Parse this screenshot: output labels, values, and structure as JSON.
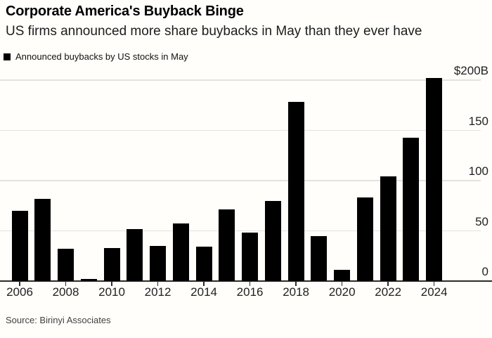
{
  "header": {
    "title": "Corporate America's Buyback Binge",
    "subtitle": "US firms announced more share buybacks in May than they ever have"
  },
  "legend": {
    "label": "Announced buybacks by US stocks in May",
    "swatch_color": "#000000"
  },
  "footer": {
    "source": "Source: Birinyi Associates"
  },
  "colors": {
    "background": "#fffefa",
    "bar": "#000000",
    "gridline": "#e2e2e2",
    "axis": "#2b2b2b",
    "text": "#111111"
  },
  "chart_data": {
    "type": "bar",
    "title": "Corporate America's Buyback Binge",
    "subtitle": "US firms announced more share buybacks in May than they ever have",
    "series_name": "Announced buybacks by US stocks in May",
    "unit": "billions of US dollars",
    "categories": [
      2006,
      2007,
      2008,
      2009,
      2010,
      2011,
      2012,
      2013,
      2014,
      2015,
      2016,
      2017,
      2018,
      2019,
      2020,
      2021,
      2022,
      2023,
      2024
    ],
    "values": [
      70,
      82,
      32,
      2,
      33,
      52,
      35,
      57,
      34,
      71,
      48,
      80,
      178,
      45,
      11,
      83,
      104,
      143,
      202
    ],
    "ylim": [
      0,
      200
    ],
    "y_ticks": [
      {
        "value": 0,
        "label": "0"
      },
      {
        "value": 50,
        "label": "50"
      },
      {
        "value": 100,
        "label": "100"
      },
      {
        "value": 150,
        "label": "150"
      },
      {
        "value": 200,
        "label": "$200B"
      }
    ],
    "x_ticks": [
      {
        "year": 2006,
        "label": "2006"
      },
      {
        "year": 2008,
        "label": "2008"
      },
      {
        "year": 2010,
        "label": "2010"
      },
      {
        "year": 2012,
        "label": "2012"
      },
      {
        "year": 2014,
        "label": "2014"
      },
      {
        "year": 2016,
        "label": "2016"
      },
      {
        "year": 2018,
        "label": "2018"
      },
      {
        "year": 2020,
        "label": "2020"
      },
      {
        "year": 2022,
        "label": "2022"
      },
      {
        "year": 2024,
        "label": "2024"
      }
    ],
    "grid": "horizontal",
    "legend_position": "top-left",
    "y_axis_side": "right",
    "source": "Source: Birinyi Associates"
  }
}
